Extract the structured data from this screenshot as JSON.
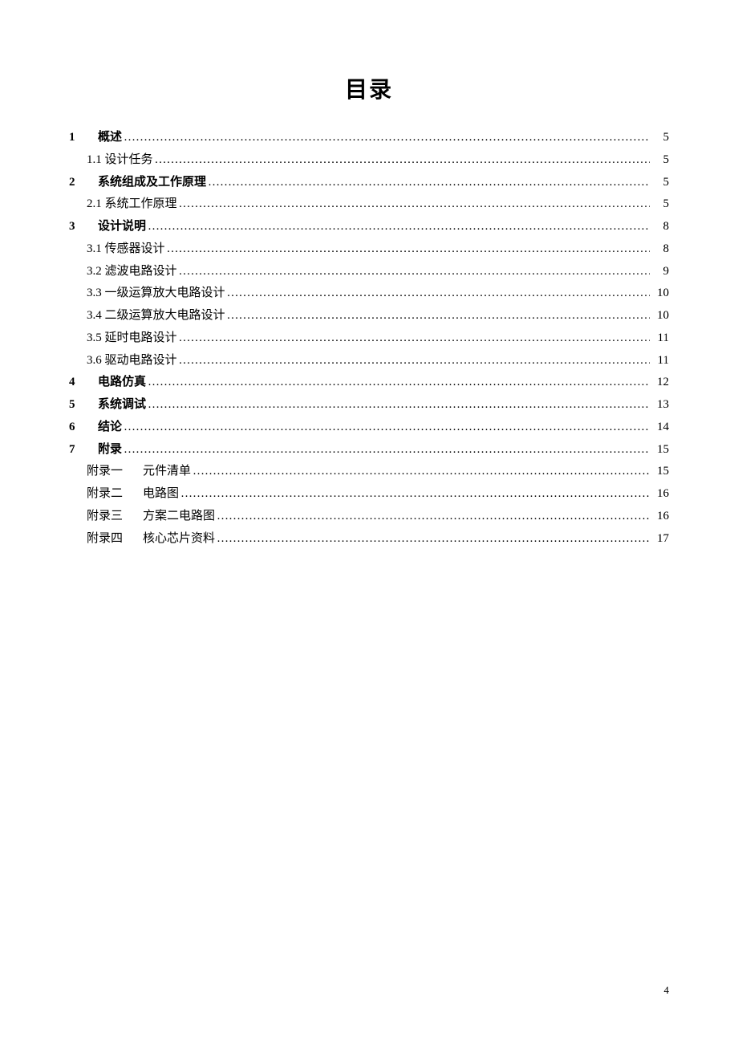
{
  "title": "目录",
  "entries": [
    {
      "num": "1",
      "label": "概述",
      "page": "5",
      "indent": 0,
      "bold": true
    },
    {
      "num": "",
      "label": "1.1 设计任务",
      "page": "5",
      "indent": 1,
      "bold": false
    },
    {
      "num": "2",
      "label": "系统组成及工作原理",
      "page": "5",
      "indent": 0,
      "bold": true
    },
    {
      "num": "",
      "label": "2.1 系统工作原理",
      "page": "5",
      "indent": 1,
      "bold": false
    },
    {
      "num": "3",
      "label": "设计说明",
      "page": "8",
      "indent": 0,
      "bold": true
    },
    {
      "num": "",
      "label": "3.1 传感器设计",
      "page": "8",
      "indent": 1,
      "bold": false
    },
    {
      "num": "",
      "label": "3.2 滤波电路设计",
      "page": "9",
      "indent": 1,
      "bold": false
    },
    {
      "num": "",
      "label": "3.3 一级运算放大电路设计",
      "page": "10",
      "indent": 1,
      "bold": false
    },
    {
      "num": "",
      "label": "3.4 二级运算放大电路设计",
      "page": "10",
      "indent": 1,
      "bold": false
    },
    {
      "num": "",
      "label": "3.5 延时电路设计",
      "page": "11",
      "indent": 1,
      "bold": false
    },
    {
      "num": "",
      "label": "3.6 驱动电路设计",
      "page": "11",
      "indent": 1,
      "bold": false
    },
    {
      "num": "4",
      "label": "电路仿真",
      "page": "12",
      "indent": 0,
      "bold": true
    },
    {
      "num": "5",
      "label": "系统调试",
      "page": "13",
      "indent": 0,
      "bold": true
    },
    {
      "num": "6",
      "label": "结论",
      "page": "14",
      "indent": 0,
      "bold": true
    },
    {
      "num": "7",
      "label": "附录",
      "page": "15",
      "indent": 0,
      "bold": true
    }
  ],
  "appendix": [
    {
      "prefix": "附录一",
      "label": "元件清单",
      "page": "15"
    },
    {
      "prefix": "附录二",
      "label": "电路图",
      "page": "16"
    },
    {
      "prefix": "附录三",
      "label": "方案二电路图",
      "page": "16"
    },
    {
      "prefix": "附录四",
      "label": "核心芯片资料",
      "page": "17"
    }
  ],
  "pageNumber": "4",
  "colors": {
    "background": "#ffffff",
    "text": "#000000"
  },
  "typography": {
    "title_fontsize": 28,
    "body_fontsize": 15,
    "font_family": "SimSun"
  }
}
